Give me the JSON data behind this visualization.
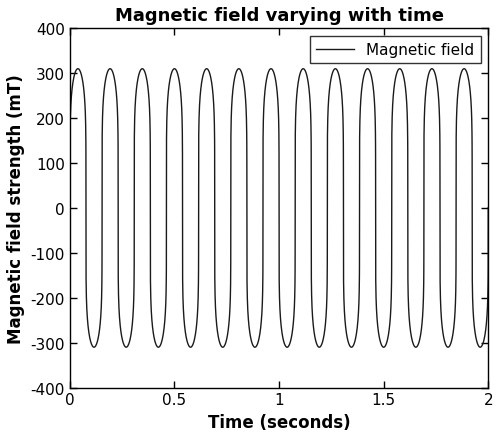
{
  "title": "Magnetic field varying with time",
  "xlabel": "Time (seconds)",
  "ylabel": "Magnetic field strength (mT)",
  "legend_label": "Magnetic field",
  "xlim": [
    0,
    2
  ],
  "ylim": [
    -400,
    400
  ],
  "xticks": [
    0,
    0.5,
    1.0,
    1.5,
    2.0
  ],
  "xtick_labels": [
    "0",
    "0.5",
    "1",
    "1.5",
    "2"
  ],
  "yticks": [
    -400,
    -300,
    -200,
    -100,
    0,
    100,
    200,
    300,
    400
  ],
  "ytick_labels": [
    "-400",
    "-300",
    "-200",
    "-100",
    "0",
    "100",
    "200",
    "300",
    "400"
  ],
  "frequency": 6.5,
  "amplitude": 310,
  "wave_power": 0.18,
  "line_color": "#1a1a1a",
  "line_width": 1.0,
  "background_color": "#ffffff",
  "title_fontsize": 13,
  "label_fontsize": 12,
  "tick_fontsize": 11,
  "legend_fontsize": 11,
  "n_points": 8000,
  "figsize": [
    5.0,
    4.39
  ],
  "dpi": 100
}
